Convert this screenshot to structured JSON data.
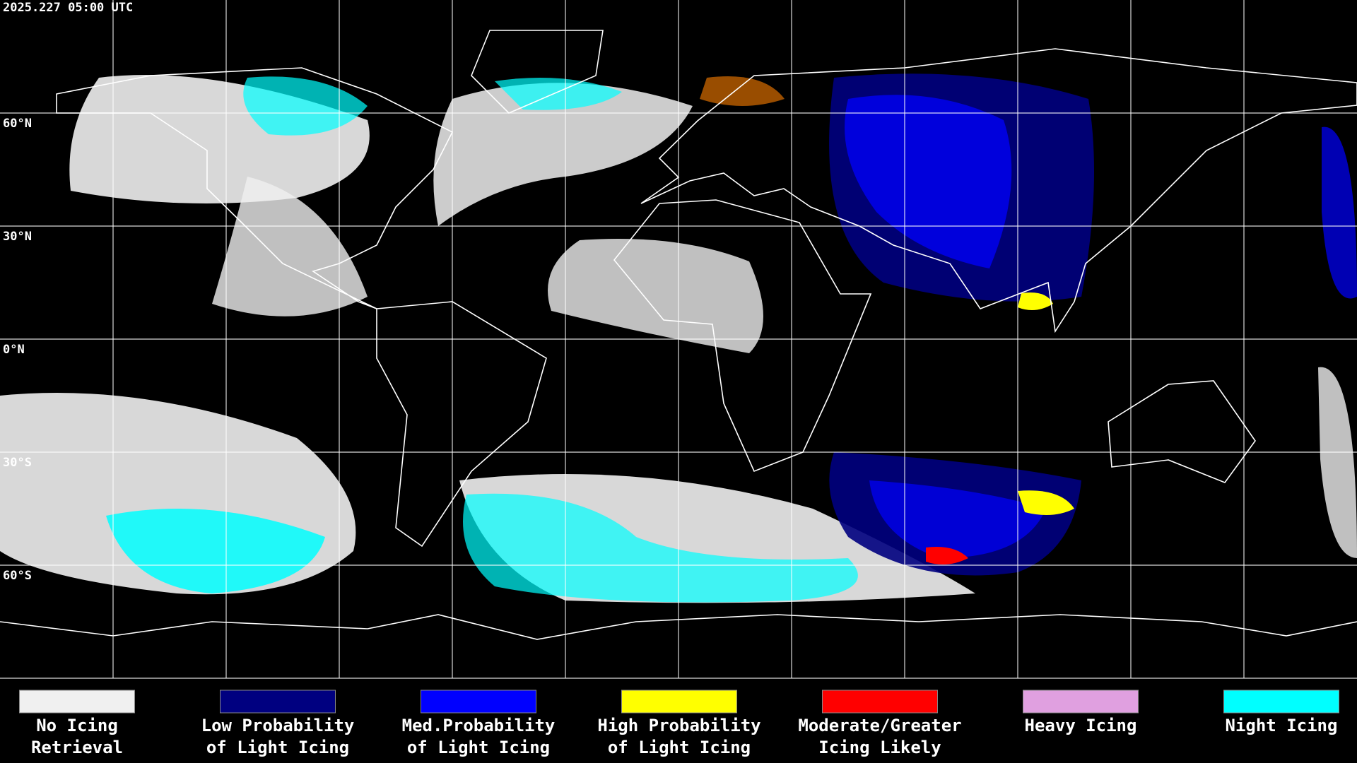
{
  "timestamp": "2025.227 05:00 UTC",
  "latitude_labels": [
    "60°N",
    "30°N",
    "0°N",
    "30°S",
    "60°S"
  ],
  "legend": [
    {
      "label_lines": [
        "No Icing",
        "Retrieval"
      ],
      "color": "#f0f0f0"
    },
    {
      "label_lines": [
        "Low Probability",
        "of Light Icing"
      ],
      "color": "#000080"
    },
    {
      "label_lines": [
        "Med.Probability",
        "of Light Icing"
      ],
      "color": "#0000ff"
    },
    {
      "label_lines": [
        "High Probability",
        "of Light Icing"
      ],
      "color": "#ffff00"
    },
    {
      "label_lines": [
        "Moderate/Greater",
        "Icing Likely"
      ],
      "color": "#ff0000"
    },
    {
      "label_lines": [
        "Heavy Icing"
      ],
      "color": "#e0a0e0"
    },
    {
      "label_lines": [
        "Night Icing"
      ],
      "color": "#00ffff"
    }
  ]
}
